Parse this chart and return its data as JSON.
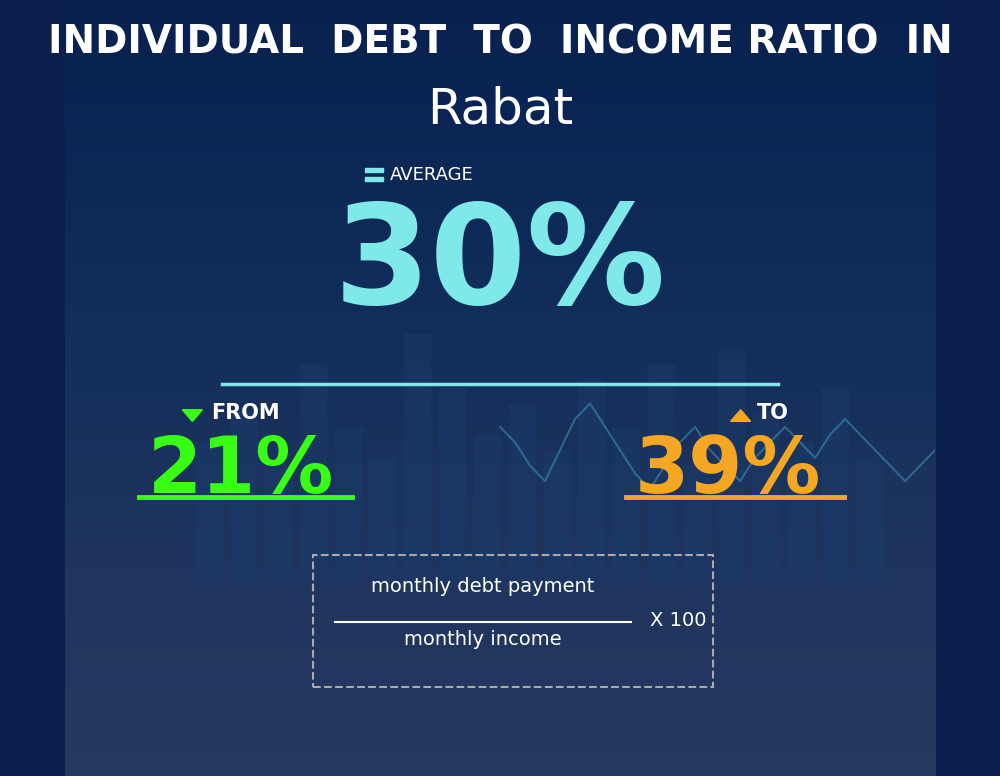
{
  "title_line1": "INDIVIDUAL  DEBT  TO  INCOME RATIO  IN",
  "title_line2": "Rabat",
  "average_label": "AVERAGE",
  "average_value": "30%",
  "from_label": "FROM",
  "from_value": "21%",
  "to_label": "TO",
  "to_value": "39%",
  "formula_numerator": "monthly debt payment",
  "formula_denominator": "monthly income",
  "formula_multiplier": "X 100",
  "bg_color": "#0a1f4b",
  "title1_color": "#ffffff",
  "title2_color": "#ffffff",
  "average_label_color": "#ffffff",
  "average_value_color": "#7fe8e8",
  "from_label_color": "#ffffff",
  "from_value_color": "#39ff14",
  "to_label_color": "#ffffff",
  "to_value_color": "#f5a623",
  "underline_from_color": "#39ff14",
  "underline_to_color": "#f5a623",
  "underline_avg_color": "#7fe8e8",
  "formula_color": "#ffffff",
  "dashed_box_color": "#aaaaaa",
  "down_arrow_color": "#39ff14",
  "up_arrow_color": "#f5a623",
  "equals_color": "#7fe8e8",
  "bar_color": "#1a3a6b",
  "line_color": "#4db8d4",
  "bar_heights": [
    1.8,
    2.2,
    1.5,
    2.8,
    2.0,
    1.6,
    3.2,
    2.5,
    1.9,
    2.3,
    1.7,
    2.6,
    2.0,
    2.8,
    1.5,
    3.0,
    2.2,
    1.8,
    2.5,
    1.6
  ],
  "line_y": [
    4.5,
    4.3,
    4.0,
    3.8,
    4.2,
    4.6,
    4.8,
    4.5,
    4.2,
    3.9,
    3.7,
    4.0,
    4.3,
    4.5,
    4.2,
    4.0,
    3.8,
    4.1,
    4.3,
    4.5,
    4.3,
    4.1,
    4.4,
    4.6,
    4.4,
    4.2,
    4.0,
    3.8,
    4.0,
    4.2
  ]
}
